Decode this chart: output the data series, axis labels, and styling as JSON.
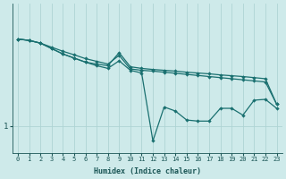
{
  "xlabel": "Humidex (Indice chaleur)",
  "ylabel": "",
  "bg_color": "#ceeaea",
  "line_color": "#1a7070",
  "grid_color": "#aed4d4",
  "text_color": "#1a5555",
  "ytick_label": "1",
  "ytick_value": 1.0,
  "x_values": [
    0,
    1,
    2,
    3,
    4,
    5,
    6,
    7,
    8,
    9,
    10,
    11,
    12,
    13,
    14,
    15,
    16,
    17,
    18,
    19,
    20,
    21,
    22,
    23
  ],
  "series1": [
    4.2,
    4.15,
    4.05,
    3.9,
    3.75,
    3.62,
    3.48,
    3.38,
    3.28,
    3.6,
    3.1,
    3.05,
    3.02,
    2.98,
    2.94,
    2.9,
    2.86,
    2.82,
    2.78,
    2.74,
    2.7,
    2.66,
    2.62,
    1.8
  ],
  "series2": [
    4.2,
    4.15,
    4.05,
    3.85,
    3.65,
    3.5,
    3.35,
    3.22,
    3.12,
    3.4,
    3.05,
    2.95,
    0.45,
    1.7,
    1.55,
    1.22,
    1.18,
    1.18,
    1.65,
    1.65,
    1.4,
    1.95,
    1.98,
    1.65
  ],
  "series3": [
    4.2,
    4.15,
    4.05,
    3.85,
    3.65,
    3.5,
    3.35,
    3.28,
    3.22,
    3.7,
    3.18,
    3.12,
    3.08,
    3.05,
    3.02,
    2.98,
    2.95,
    2.92,
    2.88,
    2.85,
    2.82,
    2.78,
    2.74,
    1.8
  ],
  "xlim": [
    -0.5,
    23.5
  ],
  "ylim": [
    0.0,
    5.5
  ],
  "yticks": [
    1.0
  ],
  "xticks": [
    0,
    1,
    2,
    3,
    4,
    5,
    6,
    7,
    8,
    9,
    10,
    11,
    12,
    13,
    14,
    15,
    16,
    17,
    18,
    19,
    20,
    21,
    22,
    23
  ]
}
